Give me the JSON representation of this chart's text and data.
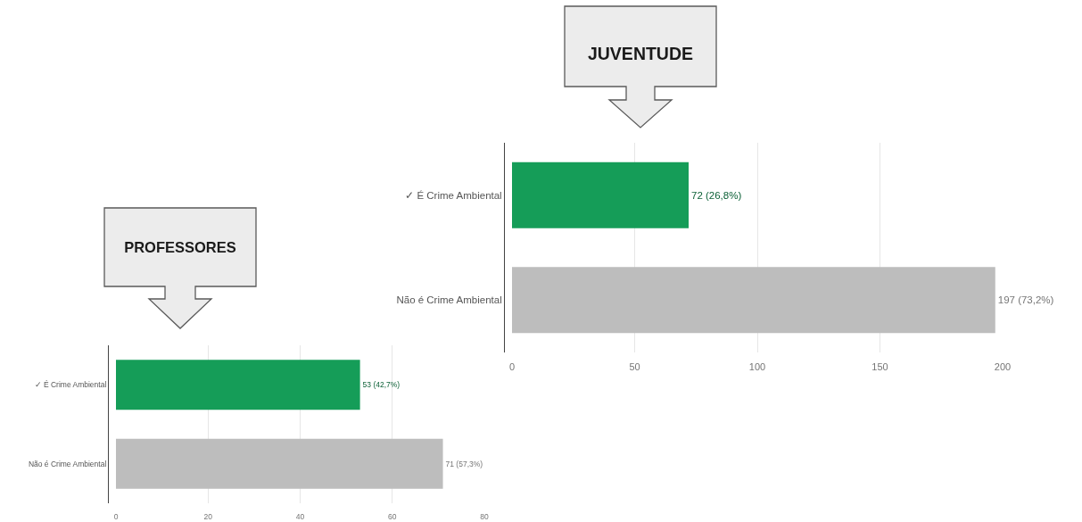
{
  "chart_data": [
    {
      "type": "bar",
      "title": "JUVENTUDE",
      "orientation": "horizontal",
      "categories": [
        "✓ É Crime Ambiental",
        "Não é Crime Ambiental"
      ],
      "values": [
        72,
        197
      ],
      "colors": [
        "#159d58",
        "#bdbdbd"
      ],
      "value_labels": [
        "72 (26,8%)",
        "197 (73,2%)"
      ],
      "xlim": [
        0,
        200
      ],
      "xticks": [
        0,
        50,
        100,
        150,
        200
      ],
      "grid": "x"
    },
    {
      "type": "bar",
      "title": "PROFESSORES",
      "orientation": "horizontal",
      "categories": [
        "✓ É Crime Ambiental",
        "Não é Crime Ambiental"
      ],
      "values": [
        53,
        71
      ],
      "colors": [
        "#159d58",
        "#bdbdbd"
      ],
      "value_labels": [
        "53 (42,7%)",
        "71 (57,3%)"
      ],
      "xlim": [
        0,
        80
      ],
      "xticks": [
        0,
        20,
        40,
        60,
        80
      ],
      "grid": "x"
    }
  ]
}
